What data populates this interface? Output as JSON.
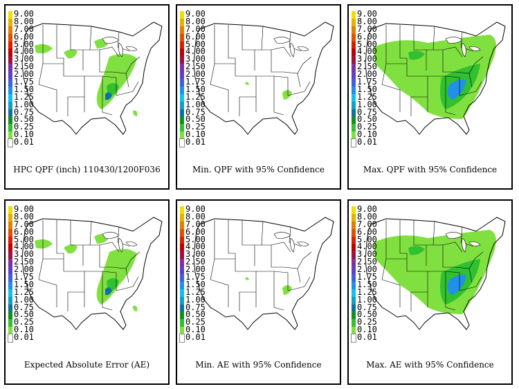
{
  "legend": {
    "values": [
      "9.00",
      "8.00",
      "7.00",
      "6.00",
      "5.00",
      "4.00",
      "3.00",
      "2.50",
      "2.00",
      "1.75",
      "1.50",
      "1.25",
      "1.00",
      "0.75",
      "0.50",
      "0.25",
      "0.10",
      "0.01"
    ],
    "colors": [
      "#f0e000",
      "#e8b000",
      "#e08000",
      "#e05000",
      "#d82000",
      "#c00000",
      "#a01040",
      "#8030a0",
      "#6040c8",
      "#4060e0",
      "#2090e8",
      "#10c0f0",
      "#10a0c0",
      "#1070a0",
      "#109020",
      "#30c030",
      "#80e040",
      "#ffffff"
    ]
  },
  "panels": [
    {
      "caption": "HPC QPF (inch) 110430/1200F036",
      "intensity": "base"
    },
    {
      "caption": "Min. QPF with 95% Confidence",
      "intensity": "min"
    },
    {
      "caption": "Max. QPF with 95% Confidence",
      "intensity": "max"
    },
    {
      "caption": "Expected Absolute Error (AE)",
      "intensity": "base"
    },
    {
      "caption": "Min. AE with 95% Confidence",
      "intensity": "min"
    },
    {
      "caption": "Max. AE with 95% Confidence",
      "intensity": "max"
    }
  ]
}
